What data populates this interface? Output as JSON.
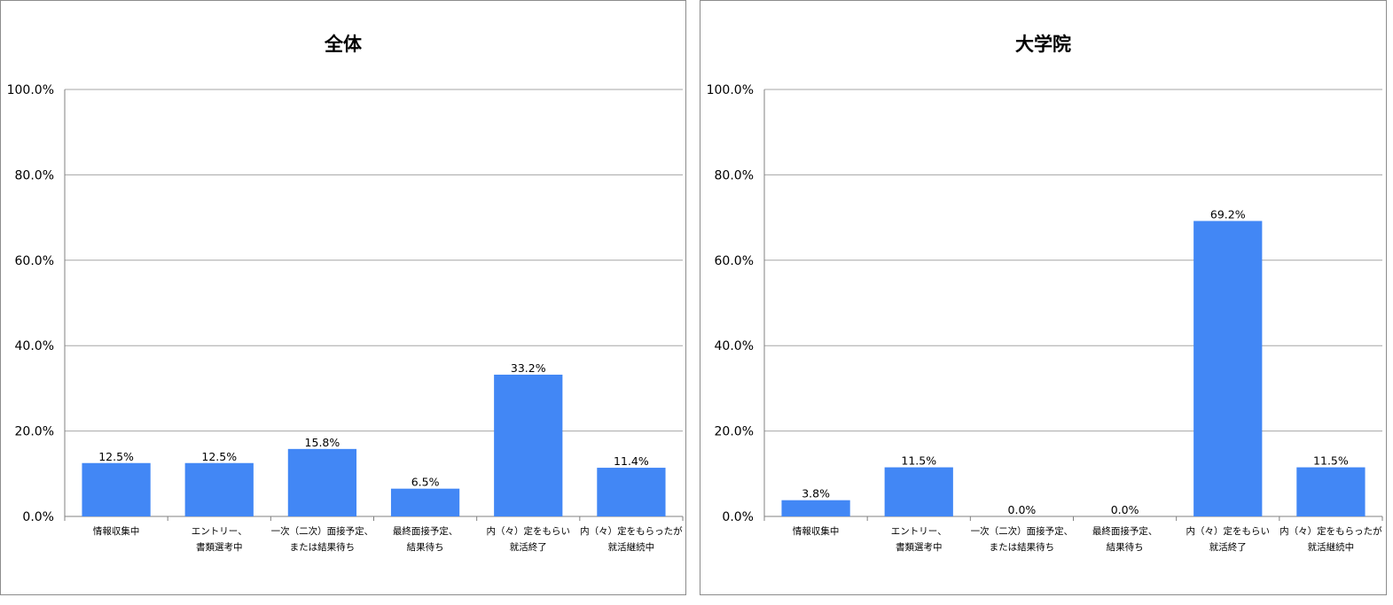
{
  "colors": {
    "bar": "#4287F5",
    "grid": "#a6a6a6",
    "axis": "#808080",
    "frame": "#8c8c8c"
  },
  "chart_data": [
    {
      "type": "bar",
      "title": "全体",
      "categories": [
        [
          "情報収集中"
        ],
        [
          "エントリー、",
          "書類選考中"
        ],
        [
          "一次（二次）面接予定、",
          "または結果待ち"
        ],
        [
          "最終面接予定、",
          "結果待ち"
        ],
        [
          "内（々）定をもらい",
          "就活終了"
        ],
        [
          "内（々）定をもらったが",
          "就活継続中"
        ]
      ],
      "values": [
        12.5,
        12.5,
        15.8,
        6.5,
        33.2,
        11.4
      ],
      "value_labels": [
        "12.5%",
        "12.5%",
        "15.8%",
        "6.5%",
        "33.2%",
        "11.4%"
      ],
      "yticks": [
        "0.0%",
        "20.0%",
        "40.0%",
        "60.0%",
        "80.0%",
        "100.0%"
      ],
      "ylim": [
        0,
        100
      ],
      "grid": true,
      "legend": "none"
    },
    {
      "type": "bar",
      "title": "大学院",
      "categories": [
        [
          "情報収集中"
        ],
        [
          "エントリー、",
          "書類選考中"
        ],
        [
          "一次（二次）面接予定、",
          "または結果待ち"
        ],
        [
          "最終面接予定、",
          "結果待ち"
        ],
        [
          "内（々）定をもらい",
          "就活終了"
        ],
        [
          "内（々）定をもらったが",
          "就活継続中"
        ]
      ],
      "values": [
        3.8,
        11.5,
        0.0,
        0.0,
        69.2,
        11.5
      ],
      "value_labels": [
        "3.8%",
        "11.5%",
        "0.0%",
        "0.0%",
        "69.2%",
        "11.5%"
      ],
      "yticks": [
        "0.0%",
        "20.0%",
        "40.0%",
        "60.0%",
        "80.0%",
        "100.0%"
      ],
      "ylim": [
        0,
        100
      ],
      "grid": true,
      "legend": "none"
    }
  ]
}
